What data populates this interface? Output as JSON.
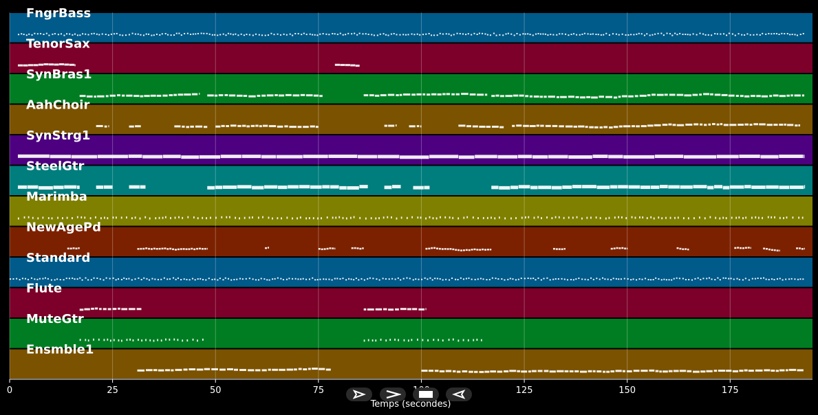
{
  "chart_data": {
    "type": "piano-roll",
    "title": "",
    "xlabel": "Temps (secondes)",
    "ylabel": "",
    "xlim": [
      0,
      195
    ],
    "x_ticks": [
      0,
      25,
      50,
      75,
      100,
      125,
      150,
      175
    ],
    "x_tick_labels": [
      "0",
      "25",
      "50",
      "75",
      "100",
      "125",
      "150",
      "175"
    ],
    "grid": true,
    "tracks": [
      {
        "name": "FngrBass",
        "color": "#005a8a",
        "style": "dense-small",
        "segments": [
          [
            2,
            193
          ]
        ]
      },
      {
        "name": "TenorSax",
        "color": "#7c0029",
        "style": "long",
        "segments": [
          [
            2,
            16
          ],
          [
            79,
            85
          ]
        ]
      },
      {
        "name": "SynBras1",
        "color": "#007d22",
        "style": "mixed",
        "segments": [
          [
            17,
            46
          ],
          [
            48,
            76
          ],
          [
            86,
            116
          ],
          [
            117,
            193
          ]
        ]
      },
      {
        "name": "AahChoir",
        "color": "#7b5200",
        "style": "mixed",
        "segments": [
          [
            21,
            24
          ],
          [
            29,
            32
          ],
          [
            40,
            48
          ],
          [
            50,
            75
          ],
          [
            91,
            94
          ],
          [
            97,
            100
          ],
          [
            109,
            120
          ],
          [
            122,
            192
          ]
        ]
      },
      {
        "name": "SynStrg1",
        "color": "#4d0080",
        "style": "sustain",
        "segments": [
          [
            2,
            193
          ]
        ]
      },
      {
        "name": "SteelGtr",
        "color": "#007d7d",
        "style": "block",
        "segments": [
          [
            2,
            17
          ],
          [
            21,
            25
          ],
          [
            29,
            33
          ],
          [
            48,
            87
          ],
          [
            91,
            95
          ],
          [
            98,
            102
          ],
          [
            117,
            193
          ]
        ]
      },
      {
        "name": "Marimba",
        "color": "#7f7f00",
        "style": "staccato",
        "segments": [
          [
            2,
            193
          ]
        ]
      },
      {
        "name": "NewAgePd",
        "color": "#7c2100",
        "style": "phrases",
        "segments": [
          [
            14,
            17
          ],
          [
            31,
            48
          ],
          [
            62,
            63
          ],
          [
            75,
            79
          ],
          [
            83,
            86
          ],
          [
            101,
            117
          ],
          [
            132,
            135
          ],
          [
            146,
            150
          ],
          [
            162,
            165
          ],
          [
            176,
            180
          ],
          [
            183,
            187
          ],
          [
            191,
            193
          ]
        ]
      },
      {
        "name": "Standard",
        "color": "#005a8a",
        "style": "dense-small",
        "segments": [
          [
            0,
            193
          ]
        ]
      },
      {
        "name": "Flute",
        "color": "#7c0029",
        "style": "mixed",
        "segments": [
          [
            17,
            32
          ],
          [
            86,
            101
          ]
        ]
      },
      {
        "name": "MuteGtr",
        "color": "#007d22",
        "style": "staccato",
        "segments": [
          [
            17,
            48
          ],
          [
            86,
            115
          ]
        ]
      },
      {
        "name": "Ensmble1",
        "color": "#7b5200",
        "style": "mixed",
        "segments": [
          [
            31,
            78
          ],
          [
            100,
            193
          ]
        ]
      }
    ]
  },
  "controls": [
    {
      "name": "play-icon"
    },
    {
      "name": "forward-icon"
    },
    {
      "name": "stop-icon"
    },
    {
      "name": "rewind-icon"
    }
  ]
}
